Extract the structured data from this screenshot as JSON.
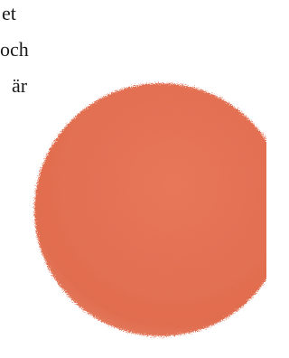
{
  "text": {
    "lines": [
      "et",
      "och",
      "är"
    ]
  }
}
